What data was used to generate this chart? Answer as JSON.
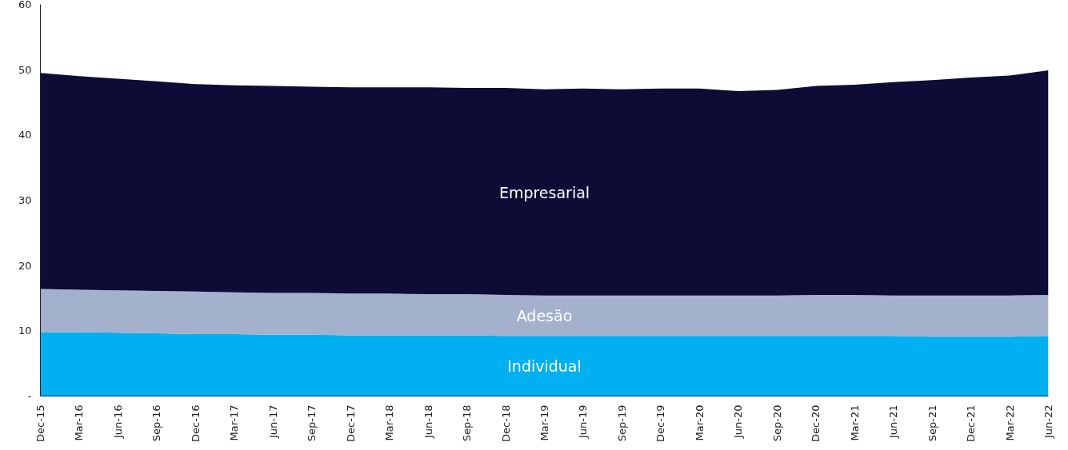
{
  "chart_data": {
    "type": "area",
    "stacked": true,
    "legend": false,
    "grid": false,
    "categories": [
      "Dec-15",
      "Mar-16",
      "Jun-16",
      "Sep-16",
      "Dec-16",
      "Mar-17",
      "Jun-17",
      "Sep-17",
      "Dec-17",
      "Mar-18",
      "Jun-18",
      "Sep-18",
      "Dec-18",
      "Mar-19",
      "Jun-19",
      "Sep-19",
      "Dec-19",
      "Mar-20",
      "Jun-20",
      "Sep-20",
      "Dec-20",
      "Mar-21",
      "Jun-21",
      "Sep-21",
      "Dec-21",
      "Mar-22",
      "Jun-22"
    ],
    "ylim": [
      0,
      60
    ],
    "yticks": [
      {
        "value": 0,
        "label": "-"
      },
      10,
      20,
      30,
      40,
      50,
      60
    ],
    "series": [
      {
        "name": "Individual",
        "color": "#00b0f0",
        "values": [
          9.8,
          9.8,
          9.7,
          9.6,
          9.5,
          9.5,
          9.4,
          9.4,
          9.3,
          9.3,
          9.3,
          9.3,
          9.2,
          9.2,
          9.2,
          9.2,
          9.2,
          9.2,
          9.2,
          9.2,
          9.2,
          9.2,
          9.2,
          9.1,
          9.1,
          9.1,
          9.2
        ]
      },
      {
        "name": "Adesão",
        "color": "#a3b1cc",
        "values": [
          6.6,
          6.5,
          6.5,
          6.5,
          6.5,
          6.4,
          6.4,
          6.4,
          6.4,
          6.4,
          6.3,
          6.3,
          6.3,
          6.2,
          6.2,
          6.2,
          6.2,
          6.2,
          6.2,
          6.2,
          6.3,
          6.3,
          6.2,
          6.3,
          6.3,
          6.3,
          6.3
        ]
      },
      {
        "name": "Empresarial",
        "color": "#0d0c36",
        "values": [
          33.1,
          32.7,
          32.4,
          32.1,
          31.8,
          31.7,
          31.7,
          31.6,
          31.6,
          31.6,
          31.7,
          31.6,
          31.7,
          31.6,
          31.7,
          31.6,
          31.7,
          31.7,
          31.3,
          31.5,
          32.0,
          32.2,
          32.7,
          33.0,
          33.4,
          33.7,
          34.4
        ]
      }
    ]
  }
}
